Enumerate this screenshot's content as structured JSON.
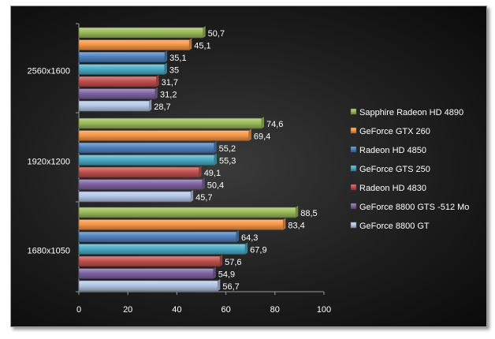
{
  "chart_data": {
    "type": "bar",
    "orientation": "horizontal",
    "categories": [
      "2560x1600",
      "1920x1200",
      "1680x1050"
    ],
    "series": [
      {
        "name": "Sapphire Radeon HD 4890",
        "color": "#9bbb59",
        "values": [
          50.7,
          74.6,
          88.5
        ],
        "labels": [
          "50,7",
          "74,6",
          "88,5"
        ]
      },
      {
        "name": "GeForce GTX 260",
        "color": "#f79646",
        "values": [
          45.1,
          69.4,
          83.4
        ],
        "labels": [
          "45,1",
          "69,4",
          "83,4"
        ]
      },
      {
        "name": "Radeon HD 4850",
        "color": "#4f81bd",
        "values": [
          35.1,
          55.2,
          64.3
        ],
        "labels": [
          "35,1",
          "55,2",
          "64,3"
        ]
      },
      {
        "name": "GeForce GTS 250",
        "color": "#4bacc6",
        "values": [
          35,
          55.3,
          67.9
        ],
        "labels": [
          "35",
          "55,3",
          "67,9"
        ]
      },
      {
        "name": "Radeon HD 4830",
        "color": "#c0504d",
        "values": [
          31.7,
          49.1,
          57.6
        ],
        "labels": [
          "31,7",
          "49,1",
          "57,6"
        ]
      },
      {
        "name": "GeForce 8800 GTS -512 Mo",
        "color": "#8064a2",
        "values": [
          31.2,
          50.4,
          54.9
        ],
        "labels": [
          "31,2",
          "50,4",
          "54,9"
        ]
      },
      {
        "name": "GeForce 8800 GT",
        "color": "#b4c7e7",
        "values": [
          28.7,
          45.7,
          56.7
        ],
        "labels": [
          "28,7",
          "45,7",
          "56,7"
        ]
      }
    ],
    "xlim": [
      0,
      100
    ],
    "xticks": [
      0,
      20,
      40,
      60,
      80,
      100
    ],
    "grid": false,
    "legend_position": "right",
    "title": "",
    "xlabel": "",
    "ylabel": ""
  }
}
